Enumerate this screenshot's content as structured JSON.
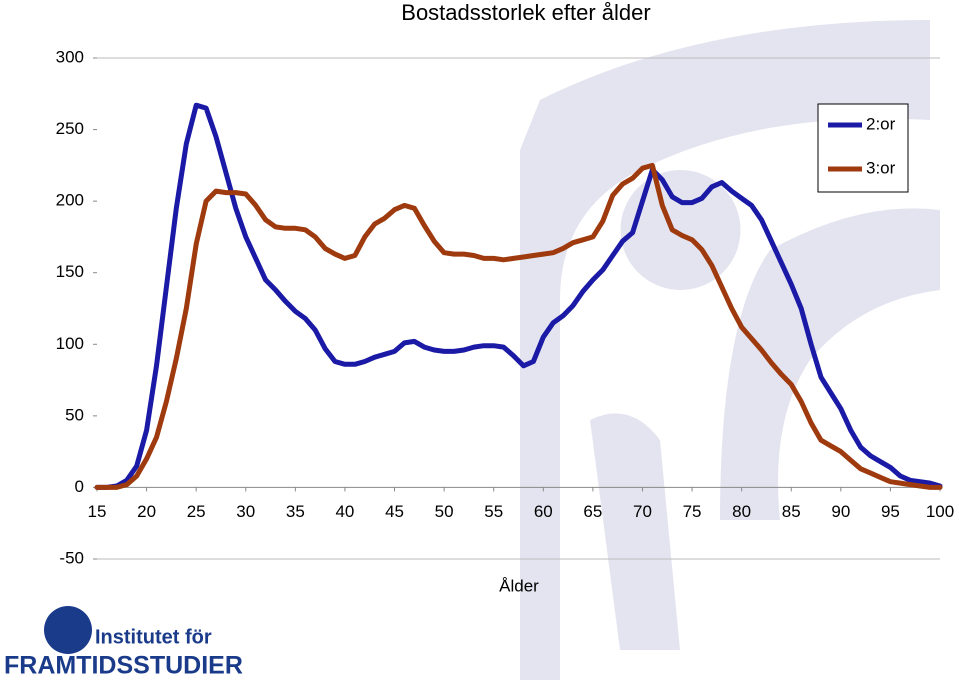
{
  "chart_data": {
    "type": "line",
    "title": "Bostadsstorlek efter ålder",
    "x_label": "Ålder",
    "x": [
      15,
      16,
      17,
      18,
      19,
      20,
      21,
      22,
      23,
      24,
      25,
      26,
      27,
      28,
      29,
      30,
      31,
      32,
      33,
      34,
      35,
      36,
      37,
      38,
      39,
      40,
      41,
      42,
      43,
      44,
      45,
      46,
      47,
      48,
      49,
      50,
      51,
      52,
      53,
      54,
      55,
      56,
      57,
      58,
      59,
      60,
      61,
      62,
      63,
      64,
      65,
      66,
      67,
      68,
      69,
      70,
      71,
      72,
      73,
      74,
      75,
      76,
      77,
      78,
      79,
      80,
      81,
      82,
      83,
      84,
      85,
      86,
      87,
      88,
      89,
      90,
      91,
      92,
      93,
      94,
      95,
      96,
      97,
      98,
      99,
      100
    ],
    "series": [
      {
        "name": "2:or",
        "color": "#1a1aa6",
        "values": [
          0,
          0,
          1,
          5,
          15,
          40,
          85,
          140,
          195,
          240,
          267,
          265,
          245,
          220,
          195,
          175,
          160,
          145,
          138,
          130,
          123,
          118,
          110,
          97,
          88,
          86,
          86,
          88,
          91,
          93,
          95,
          101,
          102,
          98,
          96,
          95,
          95,
          96,
          98,
          99,
          99,
          98,
          92,
          85,
          88,
          105,
          115,
          120,
          127,
          137,
          145,
          152,
          162,
          172,
          178,
          200,
          222,
          215,
          203,
          199,
          199,
          202,
          210,
          213,
          207,
          202,
          197,
          187,
          172,
          157,
          142,
          125,
          100,
          77,
          66,
          55,
          40,
          28,
          22,
          18,
          14,
          8,
          5,
          4,
          3,
          1
        ]
      },
      {
        "name": "3:or",
        "color": "#9e3a0e",
        "values": [
          0,
          0,
          0,
          2,
          8,
          20,
          35,
          60,
          90,
          125,
          170,
          200,
          207,
          206,
          206,
          205,
          197,
          187,
          182,
          181,
          181,
          180,
          175,
          167,
          163,
          160,
          162,
          175,
          184,
          188,
          194,
          197,
          195,
          183,
          172,
          164,
          163,
          163,
          162,
          160,
          160,
          159,
          160,
          161,
          162,
          163,
          164,
          167,
          171,
          173,
          175,
          186,
          204,
          212,
          216,
          223,
          225,
          197,
          180,
          176,
          173,
          166,
          155,
          140,
          125,
          112,
          104,
          96,
          87,
          79,
          72,
          60,
          45,
          33,
          29,
          25,
          19,
          13,
          10,
          7,
          4,
          3,
          2,
          1,
          0,
          0
        ]
      }
    ],
    "xlim": [
      15,
      100
    ],
    "xticks": [
      15,
      20,
      25,
      30,
      35,
      40,
      45,
      50,
      55,
      60,
      65,
      70,
      75,
      80,
      85,
      90,
      95,
      100
    ],
    "ylim": [
      -50,
      300
    ],
    "yticks": [
      -50,
      0,
      50,
      100,
      150,
      200,
      250,
      300
    ],
    "legend": "top-right"
  },
  "logo": {
    "line1": "Institutet för",
    "line2": "FRAMTIDSSTUDIER"
  }
}
